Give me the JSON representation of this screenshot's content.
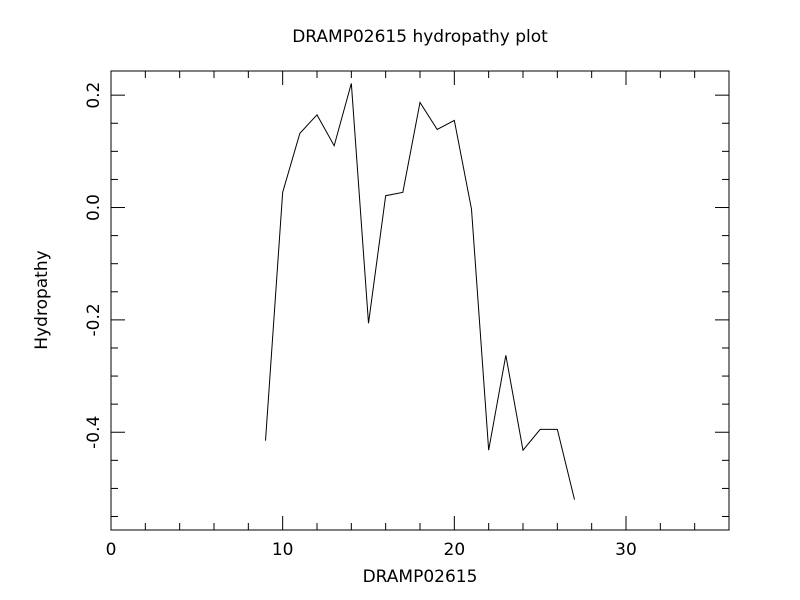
{
  "chart_data": {
    "type": "line",
    "title": "DRAMP02615 hydropathy plot",
    "x_label": "DRAMP02615",
    "y_label": "Hydropathy",
    "x": [
      9,
      10,
      11,
      12,
      13,
      14,
      15,
      16,
      17,
      18,
      19,
      20,
      21,
      22,
      23,
      24,
      25,
      26,
      27
    ],
    "series": [
      {
        "color": "#000000",
        "values": [
          -0.415,
          0.027,
          0.132,
          0.165,
          0.11,
          0.221,
          -0.206,
          0.021,
          0.027,
          0.187,
          0.139,
          0.155,
          -0.003,
          -0.432,
          -0.263,
          -0.432,
          -0.395,
          -0.395,
          -0.52
        ]
      }
    ],
    "xlim": [
      0,
      36
    ],
    "ylim": [
      -0.574,
      0.243
    ],
    "xticks": [
      0,
      10,
      20,
      30
    ],
    "yticks": [
      -0.4,
      -0.2,
      {
        "value": 0,
        "label": "0.0"
      },
      0.2
    ],
    "x_minor_ticks": [
      2,
      4,
      6,
      8,
      12,
      14,
      16,
      18,
      22,
      24,
      26,
      28,
      32,
      34
    ],
    "y_minor_ticks": [
      -0.55,
      -0.5,
      -0.45,
      -0.35,
      -0.3,
      -0.25,
      -0.15,
      -0.1,
      -0.05,
      0.05,
      0.1,
      0.15
    ],
    "grid": false
  }
}
